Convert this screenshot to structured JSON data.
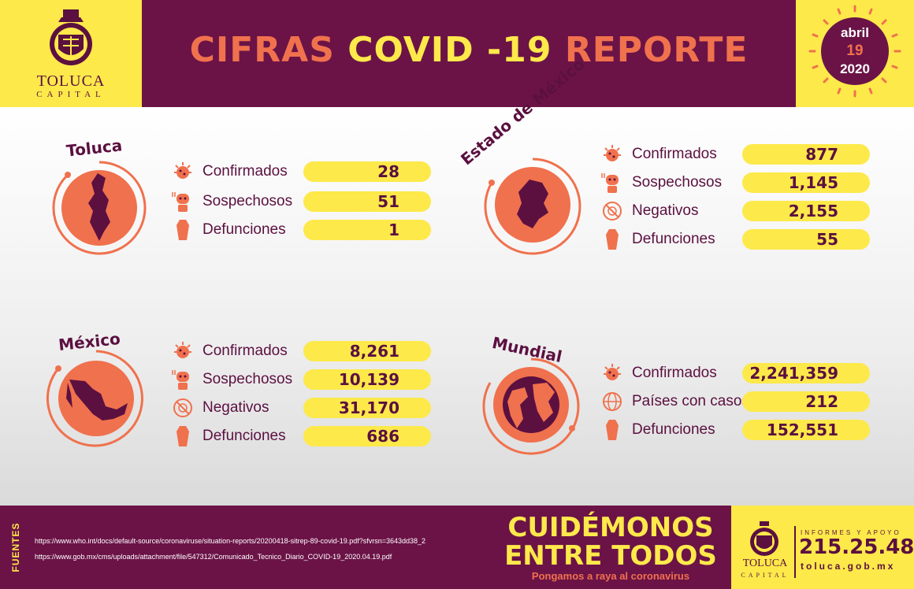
{
  "header": {
    "logo": {
      "name": "TOLUCA",
      "subtitle": "CAPITAL"
    },
    "title": {
      "part1": "CIFRAS",
      "part2": "COVID -19",
      "part3": "REPORTE"
    },
    "date": {
      "month": "abril",
      "day": "19",
      "year": "2020"
    }
  },
  "colors": {
    "wine": "#6b1347",
    "yellow": "#fde94a",
    "orange": "#f0714d",
    "dark": "#5b1040"
  },
  "panels": {
    "toluca": {
      "title": "Toluca",
      "rows": [
        {
          "icon": "virus-icon",
          "label": "Confirmados",
          "value": "28"
        },
        {
          "icon": "sick-person-icon",
          "label": "Sospechosos",
          "value": "51"
        },
        {
          "icon": "coffin-icon",
          "label": "Defunciones",
          "value": "1"
        }
      ]
    },
    "estado": {
      "title": "Estado de México",
      "rows": [
        {
          "icon": "virus-icon",
          "label": "Confirmados",
          "value": "877"
        },
        {
          "icon": "sick-person-icon",
          "label": "Sospechosos",
          "value": "1,145"
        },
        {
          "icon": "crossed-virus-icon",
          "label": "Negativos",
          "value": "2,155"
        },
        {
          "icon": "coffin-icon",
          "label": "Defunciones",
          "value": "55"
        }
      ]
    },
    "mexico": {
      "title": "México",
      "rows": [
        {
          "icon": "virus-icon",
          "label": "Confirmados",
          "value": "8,261"
        },
        {
          "icon": "sick-person-icon",
          "label": "Sospechosos",
          "value": "10,139"
        },
        {
          "icon": "crossed-virus-icon",
          "label": "Negativos",
          "value": "31,170"
        },
        {
          "icon": "coffin-icon",
          "label": "Defunciones",
          "value": "686"
        }
      ]
    },
    "mundial": {
      "title": "Mundial",
      "rows": [
        {
          "icon": "virus-icon",
          "label": "Confirmados",
          "value": "2,241,359"
        },
        {
          "icon": "globe-icon",
          "label": "Países con casos",
          "value": "212"
        },
        {
          "icon": "coffin-icon",
          "label": "Defunciones",
          "value": "152,551"
        }
      ]
    }
  },
  "footer": {
    "fuentes_label": "FUENTES",
    "sources": [
      "https://www.who.int/docs/default-source/coronaviruse/situation-reports/20200418-sitrep-89-covid-19.pdf?sfvrsn=3643dd38_2",
      "https://www.gob.mx/cms/uploads/attachment/file/547312/Comunicado_Tecnico_Diario_COVID-19_2020.04.19.pdf"
    ],
    "slogan": {
      "line1": "CUIDÉMONOS",
      "line2": "ENTRE TODOS",
      "line3": "Pongamos a raya al coronavirus"
    },
    "contact": {
      "logo_name": "TOLUCA",
      "logo_subtitle": "CAPITAL",
      "label": "INFORMES Y APOYO",
      "phone": "215.25.48",
      "website": "toluca.gob.mx"
    }
  }
}
